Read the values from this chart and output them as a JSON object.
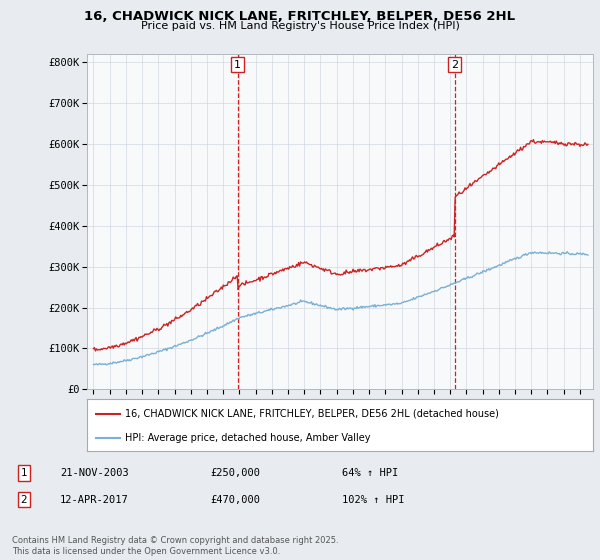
{
  "title": "16, CHADWICK NICK LANE, FRITCHLEY, BELPER, DE56 2HL",
  "subtitle": "Price paid vs. HM Land Registry's House Price Index (HPI)",
  "ylabel_ticks": [
    "£0",
    "£100K",
    "£200K",
    "£300K",
    "£400K",
    "£500K",
    "£600K",
    "£700K",
    "£800K"
  ],
  "ytick_values": [
    0,
    100000,
    200000,
    300000,
    400000,
    500000,
    600000,
    700000,
    800000
  ],
  "ylim": [
    0,
    820000
  ],
  "xlim_start": 1994.6,
  "xlim_end": 2025.8,
  "hpi_color": "#7ab0d4",
  "price_color": "#cc2222",
  "transaction1_x": 2003.9,
  "transaction1_y": 250000,
  "transaction2_x": 2017.28,
  "transaction2_y": 470000,
  "legend_line1": "16, CHADWICK NICK LANE, FRITCHLEY, BELPER, DE56 2HL (detached house)",
  "legend_line2": "HPI: Average price, detached house, Amber Valley",
  "annotation1_date": "21-NOV-2003",
  "annotation1_price": "£250,000",
  "annotation1_hpi": "64% ↑ HPI",
  "annotation2_date": "12-APR-2017",
  "annotation2_price": "£470,000",
  "annotation2_hpi": "102% ↑ HPI",
  "footer": "Contains HM Land Registry data © Crown copyright and database right 2025.\nThis data is licensed under the Open Government Licence v3.0.",
  "background_color": "#e8ecf0",
  "plot_bg_color": "#f8f9fb",
  "grid_color": "#d0d8e0",
  "vline_color": "#cc2222",
  "legend_border_color": "#aaaaaa",
  "title_fontsize": 9.5,
  "subtitle_fontsize": 8.0
}
